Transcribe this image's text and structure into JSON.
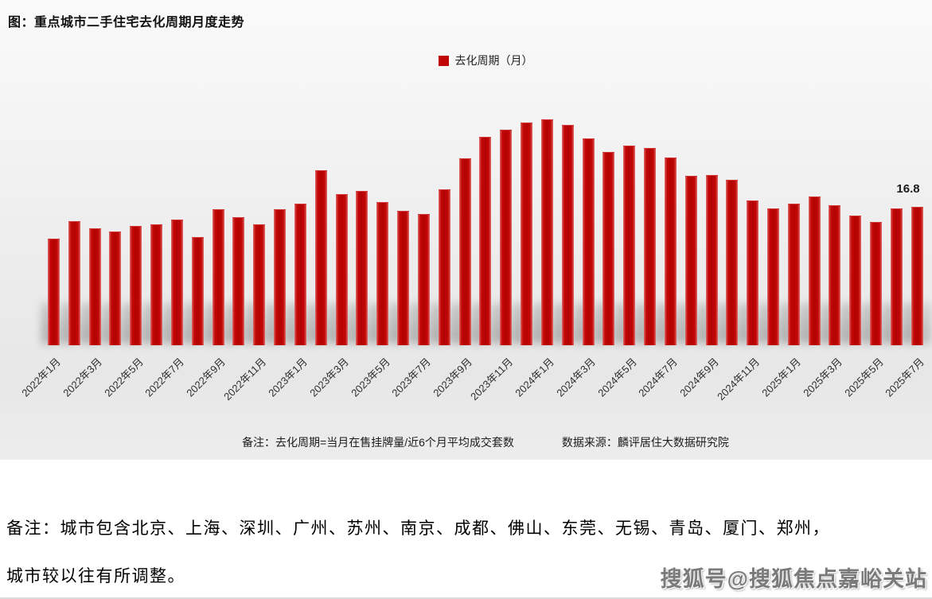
{
  "title": "图：重点城市二手住宅去化周期月度走势",
  "legend": {
    "label": "去化周期（月）",
    "color": "#c00606"
  },
  "chart_data": {
    "type": "bar",
    "title": "图：重点城市二手住宅去化周期月度走势",
    "legend_entries": [
      "去化周期（月）"
    ],
    "legend_position": "top-center",
    "xlabel": "",
    "ylabel": "去化周期（月）",
    "ylim": [
      0,
      28
    ],
    "grid": false,
    "bar_color": "#c00606",
    "tick_every": 2,
    "last_value_label": "16.8",
    "categories": [
      "2022年1月",
      "2022年2月",
      "2022年3月",
      "2022年4月",
      "2022年5月",
      "2022年6月",
      "2022年7月",
      "2022年8月",
      "2022年9月",
      "2022年10月",
      "2022年11月",
      "2022年12月",
      "2023年1月",
      "2023年2月",
      "2023年3月",
      "2023年4月",
      "2023年5月",
      "2023年6月",
      "2023年7月",
      "2023年8月",
      "2023年9月",
      "2023年10月",
      "2023年11月",
      "2023年12月",
      "2024年1月",
      "2024年2月",
      "2024年3月",
      "2024年4月",
      "2024年5月",
      "2024年6月",
      "2024年7月",
      "2024年8月",
      "2024年9月",
      "2024年10月",
      "2024年11月",
      "2024年12月",
      "2025年1月",
      "2025年2月",
      "2025年3月",
      "2025年4月",
      "2025年5月",
      "2025年6月",
      "2025年7月"
    ],
    "values": [
      12.9,
      15.1,
      14.2,
      13.8,
      14.5,
      14.7,
      15.3,
      13.1,
      16.5,
      15.5,
      14.7,
      16.5,
      17.2,
      21.2,
      18.3,
      18.7,
      17.4,
      16.3,
      15.9,
      18.9,
      22.7,
      25.3,
      26.2,
      27.0,
      27.4,
      26.7,
      25.1,
      23.5,
      24.2,
      23.9,
      22.8,
      20.6,
      20.7,
      20.1,
      17.6,
      16.6,
      17.2,
      18.1,
      17.0,
      15.7,
      15.0,
      16.6,
      16.8
    ]
  },
  "notes": {
    "formula": "备注：去化周期=当月在售挂牌量/近6个月平均成交套数",
    "source": "数据来源：麟评居住大数据研究院"
  },
  "footer": {
    "line1": "备注：城市包含北京、上海、深圳、广州、苏州、南京、成都、佛山、东莞、无锡、青岛、厦门、郑州，",
    "line2": "城市较以往有所调整。",
    "watermark": "搜狐号@搜狐焦点嘉峪关站"
  }
}
